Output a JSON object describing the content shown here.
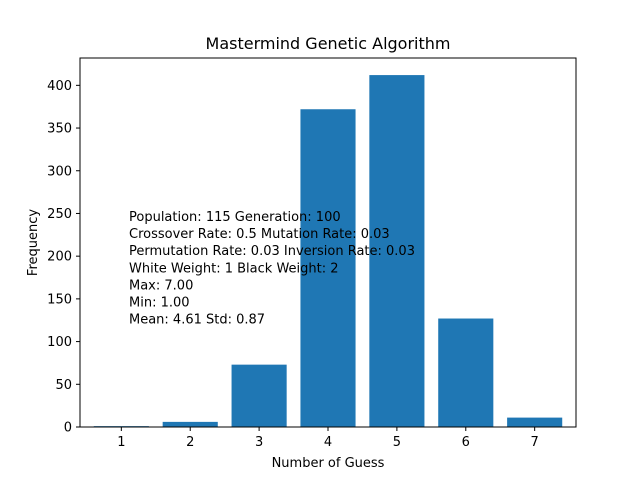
{
  "chart_data": {
    "type": "bar",
    "title": "Mastermind Genetic Algorithm",
    "xlabel": "Number of Guess",
    "ylabel": "Frequency",
    "categories": [
      "1",
      "2",
      "3",
      "4",
      "5",
      "6",
      "7"
    ],
    "values": [
      1,
      6,
      73,
      372,
      412,
      127,
      11
    ],
    "ylim": [
      0,
      432
    ],
    "yticks": [
      0,
      50,
      100,
      150,
      200,
      250,
      300,
      350,
      400
    ],
    "grid": false,
    "bar_color": "#1f77b4",
    "annotations": [
      "Population: 115 Generation: 100",
      "Crossover Rate: 0.5 Mutation Rate: 0.03",
      "Permutation Rate: 0.03 Inversion Rate: 0.03",
      "White Weight: 1 Black Weight: 2",
      "Max: 7.00",
      "Min: 1.00",
      "Mean: 4.61 Std: 0.87"
    ]
  }
}
